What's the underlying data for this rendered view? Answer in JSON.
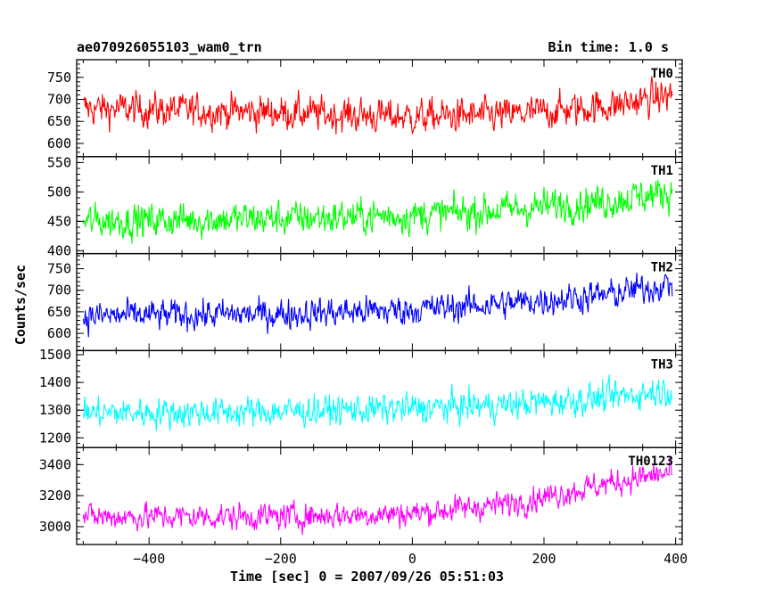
{
  "header": {
    "title": "ae070926055103_wam0_trn",
    "bin_time": "Bin time: 1.0 s"
  },
  "chart_data": {
    "type": "line",
    "xlabel": "Time [sec] 0 = 2007/09/26 05:51:03",
    "ylabel": "Counts/sec",
    "xlim": [
      -510,
      410
    ],
    "x_ticks": [
      -400,
      -200,
      0,
      200,
      400
    ],
    "x_range": [
      -500,
      395
    ],
    "panels": [
      {
        "name": "TH0",
        "color": "#ff0000",
        "ylim": [
          570,
          790
        ],
        "y_ticks": [
          600,
          650,
          700,
          750
        ],
        "trend": [
          [
            -500,
            680
          ],
          [
            -200,
            670
          ],
          [
            0,
            660
          ],
          [
            150,
            665
          ],
          [
            300,
            685
          ],
          [
            395,
            710
          ]
        ],
        "noise_amp": 50
      },
      {
        "name": "TH1",
        "color": "#00ff00",
        "ylim": [
          395,
          560
        ],
        "y_ticks": [
          400,
          450,
          500,
          550
        ],
        "trend": [
          [
            -500,
            450
          ],
          [
            -200,
            455
          ],
          [
            0,
            460
          ],
          [
            150,
            470
          ],
          [
            300,
            485
          ],
          [
            395,
            500
          ]
        ],
        "noise_amp": 38
      },
      {
        "name": "TH2",
        "color": "#0000ff",
        "ylim": [
          560,
          785
        ],
        "y_ticks": [
          600,
          650,
          700,
          750
        ],
        "trend": [
          [
            -500,
            640
          ],
          [
            -200,
            645
          ],
          [
            0,
            655
          ],
          [
            150,
            670
          ],
          [
            300,
            690
          ],
          [
            395,
            715
          ]
        ],
        "noise_amp": 45
      },
      {
        "name": "TH3",
        "color": "#00ffff",
        "ylim": [
          1165,
          1515
        ],
        "y_ticks": [
          1200,
          1300,
          1400,
          1500
        ],
        "trend": [
          [
            -500,
            1290
          ],
          [
            -200,
            1295
          ],
          [
            0,
            1305
          ],
          [
            150,
            1320
          ],
          [
            300,
            1345
          ],
          [
            395,
            1375
          ]
        ],
        "noise_amp": 70
      },
      {
        "name": "TH0123",
        "color": "#ff00ff",
        "ylim": [
          2885,
          3510
        ],
        "y_ticks": [
          3000,
          3200,
          3400
        ],
        "trend": [
          [
            -500,
            3065
          ],
          [
            -200,
            3065
          ],
          [
            0,
            3085
          ],
          [
            150,
            3150
          ],
          [
            300,
            3280
          ],
          [
            395,
            3350
          ]
        ],
        "noise_amp": 110
      }
    ]
  }
}
